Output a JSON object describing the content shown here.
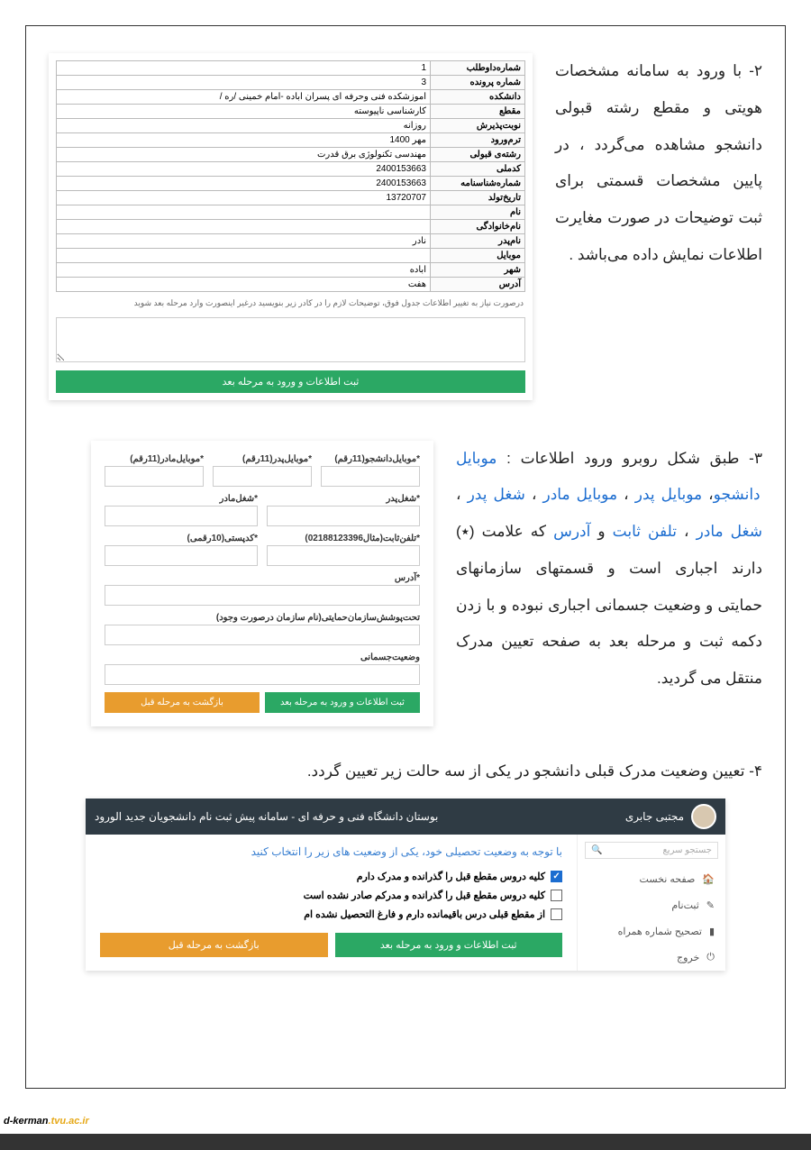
{
  "p2": "۲-  با ورود به سامانه مشخصات هویتی و مقطع رشته قبولی دانشجو مشاهده می‌گردد ، در پایین مشخصات قسمتی برای ثبت توضیحات در صورت مغایرت اطلاعات نمایش داده می‌باشد .",
  "shot1": {
    "rows": [
      {
        "label": "شماره‌داوطلب",
        "value": "1"
      },
      {
        "label": "شماره پرونده",
        "value": "3"
      },
      {
        "label": "دانشکده",
        "value": "اموزشکده فنی وحرفه ای پسران اباده -امام خمینی /ره /"
      },
      {
        "label": "مقطع",
        "value": "کارشناسی ناپیوسته"
      },
      {
        "label": "نوبت‌پذیرش",
        "value": "روزانه"
      },
      {
        "label": "ترم‌ورود",
        "value": "مهر 1400"
      },
      {
        "label": "رشته‌ی قبولی",
        "value": "مهندسی تکنولوژی برق قدرت"
      },
      {
        "label": "کدملی",
        "value": "2400153663"
      },
      {
        "label": "شماره‌شناسنامه",
        "value": "2400153663"
      },
      {
        "label": "تاریخ‌تولد",
        "value": "13720707"
      },
      {
        "label": "نام",
        "value": ""
      },
      {
        "label": "نام‌خانوادگی",
        "value": ""
      },
      {
        "label": "نام‌پدر",
        "value": "نادر"
      },
      {
        "label": "موبایل",
        "value": ""
      },
      {
        "label": "شهر",
        "value": "اباده"
      },
      {
        "label": "آدرس",
        "value": "هفت"
      }
    ],
    "note": "درصورت نیاز به تغییر اطلاعات جدول فوق، توضیحات لازم را در کادر زیر بنویسید درغیر اینصورت وارد مرحله بعد شوید",
    "btn": "ثبت اطلاعات و ورود به مرحله بعد"
  },
  "p3_pre": "۳-  طبق شکل روبرو ورود اطلاعات : ",
  "p3_links": {
    "a": "موبایل دانشجو",
    "b": "موبایل پدر",
    "c": "موبایل مادر",
    "d": "شغل پدر",
    "e": "شغل مادر",
    "f": "تلفن ثابت",
    "g": "آدرس"
  },
  "p3_mid1": "، ",
  "p3_mid2": " ، ",
  "p3_mid3": " ، ",
  "p3_mid4": " ، ",
  "p3_mid5": " و ",
  "p3_after": " که علامت (٭) دارند اجباری است  و قسمتهای سازمانهای حمایتی و وضعیت جسمانی  اجباری نبوده و با زدن دکمه ثبت و مرحله بعد به صفحه تعیین مدرک منتقل می گردید.",
  "shot2": {
    "f1": "*موبایل‌دانشجو(11رقم)",
    "f2": "*موبایل‌پدر(11رقم)",
    "f3": "*موبایل‌مادر(11رقم)",
    "f4": "*شغل‌پدر",
    "f5": "*شغل‌مادر",
    "f6": "*تلفن‌ثابت(مثال02188123396)",
    "f7": "*کدپستی(10رقمی)",
    "f8": "*آدرس",
    "f9": "تحت‌پوشش‌سازمان‌حمایتی(نام سازمان درصورت وجود)",
    "f10": "وضعیت‌جسمانی",
    "btn_ok": "ثبت اطلاعات و ورود به مرحله بعد",
    "btn_back": "بازگشت به مرحله قبل"
  },
  "p4": "۴- تعیین وضعیت مدرک قبلی دانشجو در یکی از سه حالت زیر تعیین گردد.",
  "shot3": {
    "user": "مجتبی جابری",
    "header_title": "بوستان دانشگاه فنی و حرفه ای - سامانه پیش ثبت نام دانشجویان جدید الورود",
    "search_ph": "جستجو سریع",
    "menu": {
      "a": "صفحه نخست",
      "b": "ثبت‌نام",
      "c": "تصحیح شماره همراه",
      "d": "خروج"
    },
    "title": "با توجه به وضعیت تحصیلی خود، یکی از وضعیت های زیر را انتخاب کنید",
    "opt1": "کلیه دروس مقطع قبل را گذرانده و مدرک دارم",
    "opt2": "کلیه دروس مقطع قبل را گذرانده و مدرکم صادر نشده است",
    "opt3": "از مقطع قبلی درس باقیمانده دارم و فارغ التحصیل نشده ام",
    "btn_ok": "ثبت اطلاعات و ورود به مرحله بعد",
    "btn_back": "بازگشت به مرحله قبل"
  },
  "footer": {
    "a": "d-kerman",
    "b": ".tvu.ac.ir"
  },
  "colors": {
    "green": "#2ba864",
    "orange": "#e89c2e",
    "darkbar": "#2f3b44",
    "blue": "#1c6dd0"
  }
}
